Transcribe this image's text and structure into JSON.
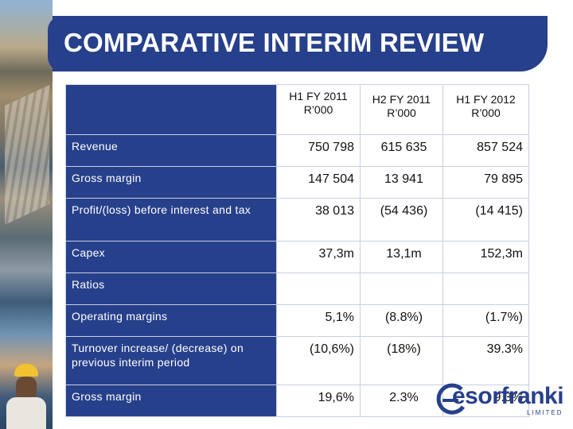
{
  "slide": {
    "title": "COMPARATIVE INTERIM REVIEW"
  },
  "table": {
    "headers": [
      {
        "line1": "H1 FY 2011",
        "line2": "R’000"
      },
      {
        "line1": "H2 FY 2011",
        "line2": "R’000"
      },
      {
        "line1": "H1 FY 2012",
        "line2": "R’000"
      }
    ],
    "rows": [
      {
        "label": "Revenue",
        "values": [
          "750 798",
          "615 635",
          "857 524"
        ]
      },
      {
        "label": "Gross margin",
        "values": [
          "147 504",
          "13 941",
          "79 895"
        ]
      },
      {
        "label": "Profit/(loss) before interest and tax",
        "values": [
          "38 013",
          "(54 436)",
          "(14 415)"
        ]
      },
      {
        "label": "Capex",
        "values": [
          "37,3m",
          "13,1m",
          "152,3m"
        ]
      },
      {
        "label": "Ratios",
        "values": [
          "",
          "",
          ""
        ]
      },
      {
        "label": "Operating margins",
        "values": [
          "5,1%",
          "(8.8%)",
          "(1.7%)"
        ]
      },
      {
        "label": "Turnover increase/ (decrease) on previous interim period",
        "values": [
          "(10,6%)",
          "(18%)",
          "39.3%"
        ]
      },
      {
        "label": "Gross margin",
        "values": [
          "19,6%",
          "2.3%",
          "9.3%"
        ]
      }
    ]
  },
  "logo": {
    "wordmark": "esorfranki",
    "subtext": "LIMITED"
  },
  "colors": {
    "brand_blue": "#27408b",
    "grid_line": "#c8cfe0"
  }
}
